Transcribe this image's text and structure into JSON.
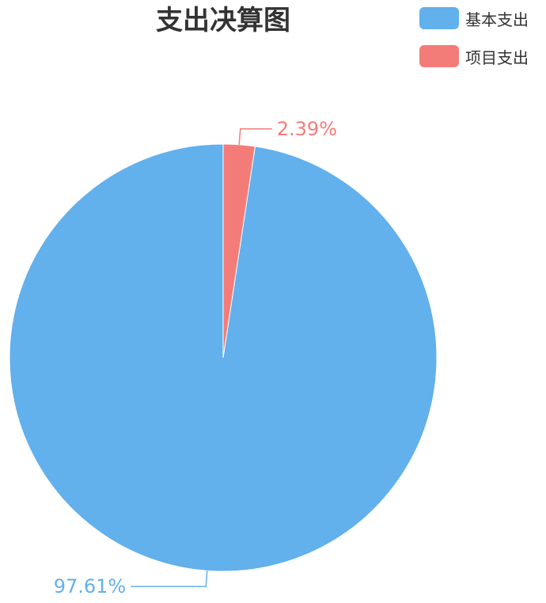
{
  "chart_data": {
    "type": "pie",
    "title": "支出决算图",
    "legend_position": "top-right",
    "series": [
      {
        "name": "基本支出",
        "value": 97.61,
        "label": "97.61%",
        "color": "#62b0ec"
      },
      {
        "name": "项目支出",
        "value": 2.39,
        "label": "2.39%",
        "color": "#f47c78"
      }
    ]
  }
}
